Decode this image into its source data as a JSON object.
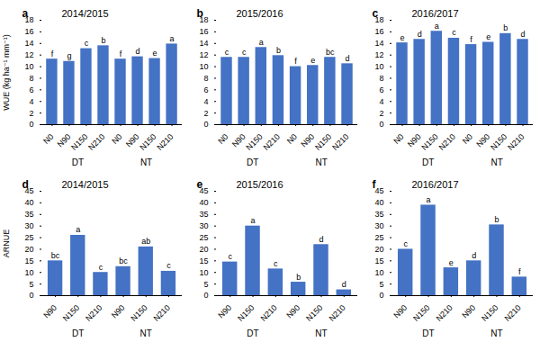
{
  "chart_data": [
    {
      "type": "bar",
      "panel_label": "a",
      "title": "2014/2015",
      "ylabel": "WUE (kg ha⁻¹ mm⁻¹)",
      "categories": [
        "N0",
        "N90",
        "N150",
        "N210",
        "N0",
        "N90",
        "N150",
        "N210"
      ],
      "groups": [
        "DT",
        "NT"
      ],
      "values": [
        11.3,
        10.9,
        13.1,
        13.6,
        11.3,
        11.7,
        11.4,
        13.9
      ],
      "letters": [
        "f",
        "g",
        "c",
        "b",
        "f",
        "d",
        "e",
        "a"
      ],
      "color": "#4472C4",
      "ylim": [
        0,
        18
      ],
      "yticks": [
        0,
        2,
        4,
        6,
        8,
        10,
        12,
        14,
        16,
        18
      ],
      "grid": false
    },
    {
      "type": "bar",
      "panel_label": "b",
      "title": "2015/2016",
      "categories": [
        "N0",
        "N90",
        "N150",
        "N210",
        "N0",
        "N90",
        "N150",
        "N210"
      ],
      "groups": [
        "DT",
        "NT"
      ],
      "values": [
        11.6,
        11.6,
        13.3,
        11.9,
        10.0,
        10.2,
        11.6,
        10.5
      ],
      "letters": [
        "c",
        "c",
        "a",
        "b",
        "f",
        "e",
        "bc",
        "d"
      ],
      "color": "#4472C4",
      "ylim": [
        0,
        18
      ],
      "yticks": [
        0,
        2,
        4,
        6,
        8,
        10,
        12,
        14,
        16,
        18
      ],
      "grid": false
    },
    {
      "type": "bar",
      "panel_label": "c",
      "title": "2016/2017",
      "categories": [
        "N0",
        "N90",
        "N150",
        "N210",
        "N0",
        "N90",
        "N150",
        "N210"
      ],
      "groups": [
        "DT",
        "NT"
      ],
      "values": [
        14.1,
        14.7,
        16.1,
        14.9,
        13.8,
        14.2,
        15.7,
        14.7
      ],
      "letters": [
        "e",
        "d",
        "a",
        "c",
        "f",
        "e",
        "b",
        "d"
      ],
      "color": "#4472C4",
      "ylim": [
        0,
        18
      ],
      "yticks": [
        0,
        2,
        4,
        6,
        8,
        10,
        12,
        14,
        16,
        18
      ],
      "grid": false
    },
    {
      "type": "bar",
      "panel_label": "d",
      "title": "2014/2015",
      "ylabel": "ARNUE",
      "categories": [
        "N90",
        "N150",
        "N210",
        "N90",
        "N150",
        "N210"
      ],
      "groups": [
        "DT",
        "NT"
      ],
      "values": [
        15.0,
        26.0,
        10.0,
        12.5,
        21.0,
        10.5
      ],
      "letters": [
        "bc",
        "a",
        "c",
        "bc",
        "ab",
        "c"
      ],
      "color": "#4472C4",
      "ylim": [
        0,
        45
      ],
      "yticks": [
        0,
        5,
        10,
        15,
        20,
        25,
        30,
        35,
        40,
        45
      ],
      "grid": false
    },
    {
      "type": "bar",
      "panel_label": "e",
      "title": "2015/2016",
      "categories": [
        "N90",
        "N150",
        "N210",
        "N90",
        "N150",
        "N210"
      ],
      "groups": [
        "DT",
        "NT"
      ],
      "values": [
        14.5,
        30.0,
        11.5,
        5.8,
        22.0,
        2.5
      ],
      "letters": [
        "c",
        "a",
        "c",
        "b",
        "d",
        "d"
      ],
      "color": "#4472C4",
      "ylim": [
        0,
        45
      ],
      "yticks": [
        0,
        5,
        10,
        15,
        20,
        25,
        30,
        35,
        40,
        45
      ],
      "grid": false
    },
    {
      "type": "bar",
      "panel_label": "f",
      "title": "2016/2017",
      "categories": [
        "N90",
        "N150",
        "N210",
        "N90",
        "N150",
        "N210"
      ],
      "groups": [
        "DT",
        "NT"
      ],
      "values": [
        20.0,
        39.0,
        12.0,
        15.0,
        30.5,
        8.0
      ],
      "letters": [
        "c",
        "a",
        "e",
        "d",
        "b",
        "f"
      ],
      "color": "#4472C4",
      "ylim": [
        0,
        45
      ],
      "yticks": [
        0,
        5,
        10,
        15,
        20,
        25,
        30,
        35,
        40,
        45
      ],
      "grid": false
    }
  ]
}
